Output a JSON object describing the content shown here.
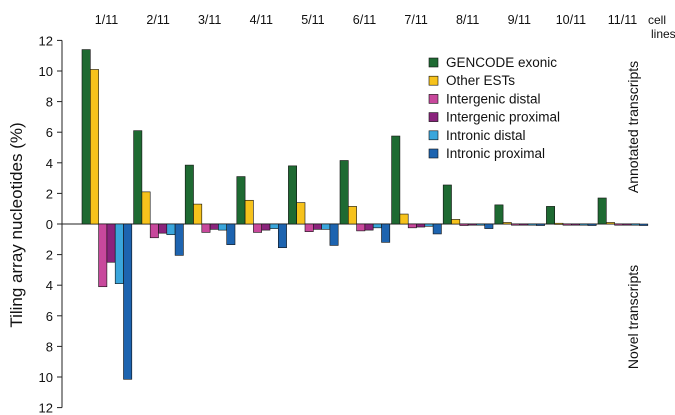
{
  "chart_data": {
    "type": "bar",
    "ylabel": "Tiling array nucleotides (%)",
    "categories": [
      "1/11",
      "2/11",
      "3/11",
      "4/11",
      "5/11",
      "6/11",
      "7/11",
      "8/11",
      "9/11",
      "10/11",
      "11/11"
    ],
    "category_suffix": [
      "cell",
      "lines"
    ],
    "ytick_labels": [
      "12",
      "10",
      "8",
      "6",
      "4",
      "2",
      "0",
      "2",
      "4",
      "6",
      "8",
      "10",
      "12"
    ],
    "ylim": [
      -12,
      12
    ],
    "side_labels": {
      "upper": "Annotated transcripts",
      "lower": "Novel transcripts"
    },
    "legend_position": "top-right",
    "series": [
      {
        "name": "GENCODE exonic",
        "color": "#1e6a32",
        "values": [
          11.4,
          6.1,
          3.85,
          3.1,
          3.8,
          4.15,
          5.75,
          2.55,
          1.25,
          1.15,
          1.7
        ]
      },
      {
        "name": "Other ESTs",
        "color": "#f6c21c",
        "values": [
          10.1,
          2.1,
          1.3,
          1.55,
          1.4,
          1.15,
          0.65,
          0.3,
          0.1,
          0.05,
          0.1
        ]
      },
      {
        "name": "Intergenic distal",
        "color": "#c8489c",
        "values": [
          -4.1,
          -0.9,
          -0.55,
          -0.55,
          -0.5,
          -0.45,
          -0.25,
          -0.1,
          -0.05,
          -0.05,
          -0.05
        ]
      },
      {
        "name": "Intergenic proximal",
        "color": "#8a237c",
        "values": [
          -2.5,
          -0.6,
          -0.35,
          -0.4,
          -0.35,
          -0.4,
          -0.2,
          -0.05,
          -0.05,
          -0.05,
          -0.05
        ]
      },
      {
        "name": "Intronic distal",
        "color": "#3aa6dc",
        "values": [
          -3.9,
          -0.7,
          -0.4,
          -0.3,
          -0.35,
          -0.25,
          -0.15,
          -0.05,
          -0.05,
          -0.05,
          -0.05
        ]
      },
      {
        "name": "Intronic proximal",
        "color": "#1d64b0",
        "values": [
          -10.15,
          -2.05,
          -1.35,
          -1.55,
          -1.4,
          -1.2,
          -0.65,
          -0.3,
          -0.1,
          -0.1,
          -0.1
        ]
      }
    ]
  }
}
